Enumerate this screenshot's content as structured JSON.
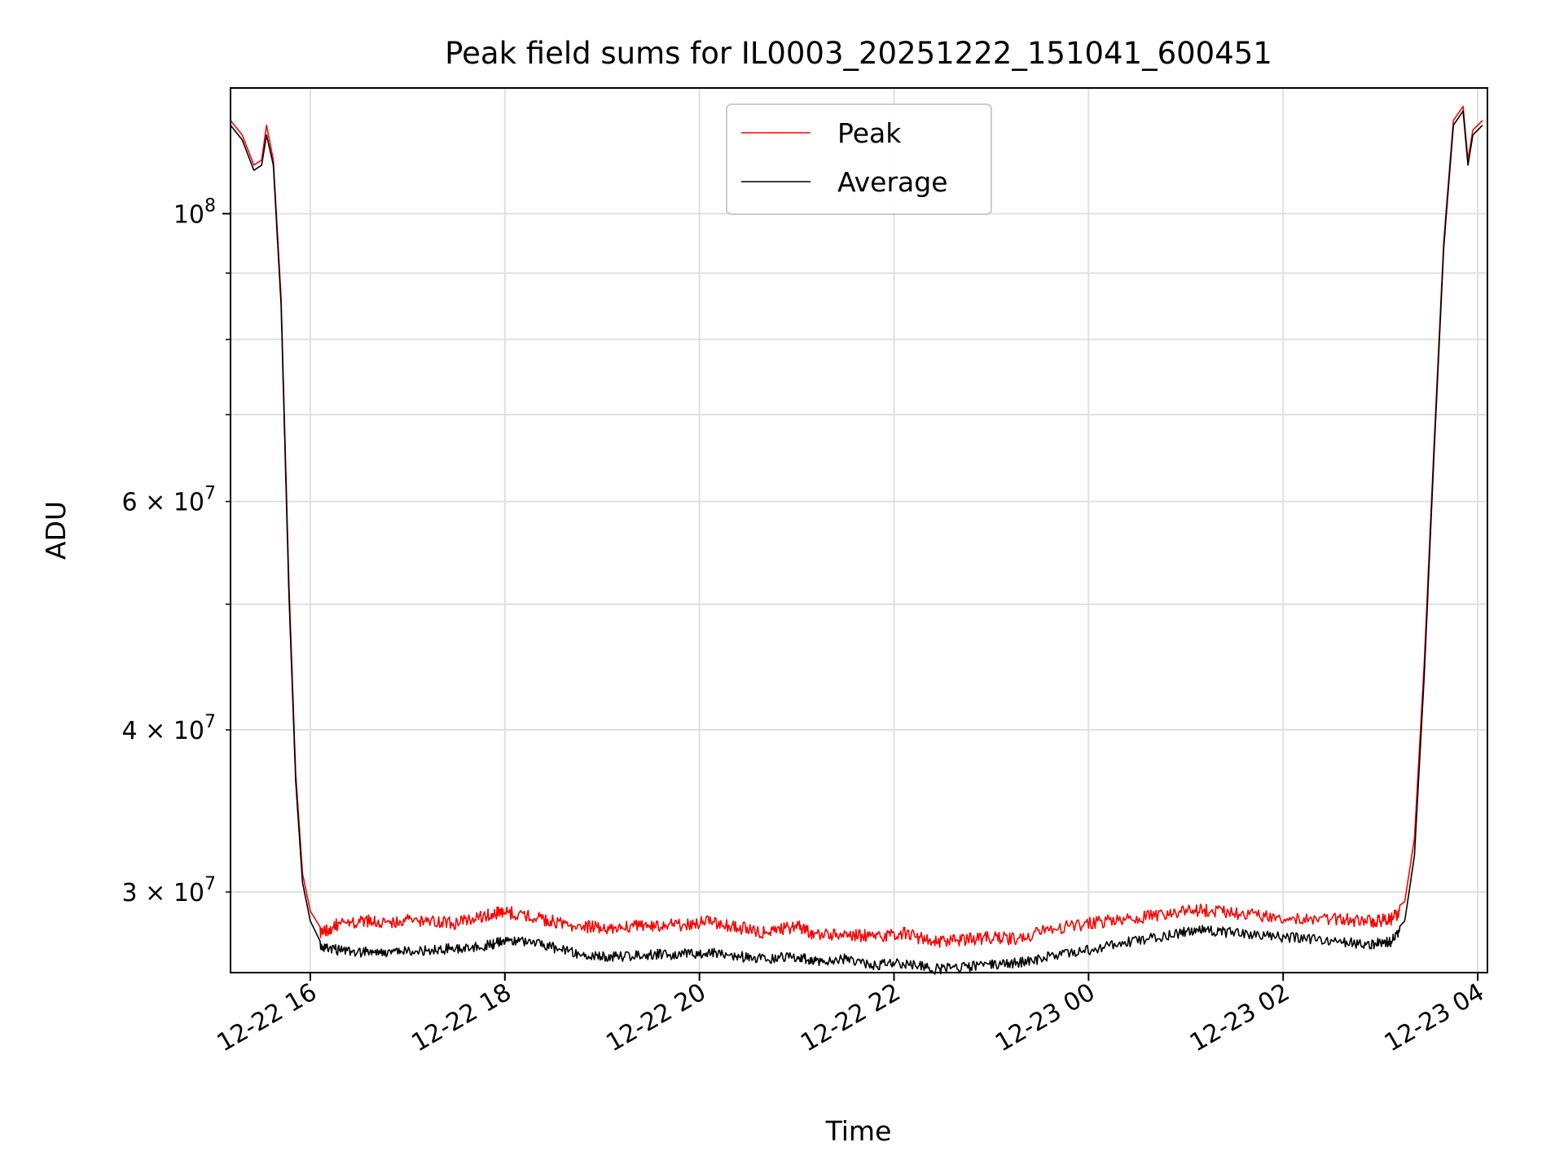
{
  "chart_data": {
    "type": "line",
    "title": "Peak field sums for IL0003_20251222_151041_600451",
    "xlabel": "Time",
    "ylabel": "ADU",
    "y_scale": "log",
    "ylim": [
      26000000,
      125000000
    ],
    "xlim_hours": [
      15.18,
      28.1
    ],
    "x_tick_hours": [
      16,
      18,
      20,
      22,
      24,
      26,
      28
    ],
    "x_tick_labels": [
      "12-22 16",
      "12-22 18",
      "12-22 20",
      "12-22 22",
      "12-23 00",
      "12-23 02",
      "12-23 04"
    ],
    "y_major_ticks": [
      {
        "value": 100000000,
        "base": "10",
        "exp": "8",
        "prefix": ""
      }
    ],
    "y_minor_ticks": [
      {
        "value": 30000000,
        "base": "10",
        "exp": "7",
        "prefix": "3 × "
      },
      {
        "value": 40000000,
        "base": "10",
        "exp": "7",
        "prefix": "4 × "
      },
      {
        "value": 60000000,
        "base": "10",
        "exp": "7",
        "prefix": "6 × "
      },
      {
        "value": 50000000,
        "base": "",
        "exp": "",
        "prefix": ""
      },
      {
        "value": 70000000,
        "base": "",
        "exp": "",
        "prefix": ""
      },
      {
        "value": 80000000,
        "base": "",
        "exp": "",
        "prefix": ""
      },
      {
        "value": 90000000,
        "base": "",
        "exp": "",
        "prefix": ""
      }
    ],
    "grid": true,
    "legend_position": "upper center",
    "series": [
      {
        "name": "Peak",
        "color": "#ff0000",
        "x_hours": [
          15.18,
          15.3,
          15.42,
          15.5,
          15.55,
          15.62,
          15.7,
          15.78,
          15.85,
          15.92,
          16.0,
          16.1,
          16.3,
          16.6,
          16.9,
          17.2,
          17.5,
          17.8,
          18.0,
          18.3,
          18.6,
          18.9,
          19.2,
          19.5,
          19.8,
          20.1,
          20.4,
          20.7,
          21.0,
          21.2,
          21.5,
          21.8,
          22.1,
          22.4,
          22.7,
          23.0,
          23.3,
          23.6,
          24.0,
          24.4,
          24.8,
          25.1,
          25.4,
          25.8,
          26.2,
          26.6,
          26.9,
          27.1,
          27.25,
          27.35,
          27.45,
          27.55,
          27.65,
          27.75,
          27.85,
          27.9,
          27.95,
          28.05
        ],
        "values": [
          118000000,
          115000000,
          109000000,
          110000000,
          117000000,
          110000000,
          86000000,
          52000000,
          37000000,
          31000000,
          29000000,
          28200000,
          28700000,
          28800000,
          28800000,
          28900000,
          28700000,
          29100000,
          29300000,
          29000000,
          28700000,
          28500000,
          28500000,
          28600000,
          28600000,
          28800000,
          28500000,
          28200000,
          28600000,
          28100000,
          28200000,
          28000000,
          28200000,
          27800000,
          27900000,
          28000000,
          27900000,
          28400000,
          28700000,
          28900000,
          29200000,
          29400000,
          29300000,
          29100000,
          29000000,
          28900000,
          28800000,
          28900000,
          29500000,
          33000000,
          45000000,
          66000000,
          95000000,
          118000000,
          121000000,
          110000000,
          116000000,
          118000000
        ]
      },
      {
        "name": "Average",
        "color": "#000000",
        "x_hours": [
          15.18,
          15.3,
          15.42,
          15.5,
          15.55,
          15.62,
          15.7,
          15.78,
          15.85,
          15.92,
          16.0,
          16.1,
          16.3,
          16.6,
          16.9,
          17.2,
          17.5,
          17.8,
          18.0,
          18.3,
          18.6,
          18.9,
          19.2,
          19.5,
          19.8,
          20.1,
          20.4,
          20.7,
          21.0,
          21.2,
          21.5,
          21.8,
          22.1,
          22.4,
          22.7,
          23.0,
          23.3,
          23.6,
          24.0,
          24.4,
          24.8,
          25.1,
          25.4,
          25.8,
          26.2,
          26.6,
          26.9,
          27.1,
          27.25,
          27.35,
          27.45,
          27.55,
          27.65,
          27.75,
          27.85,
          27.9,
          27.95,
          28.05
        ],
        "values": [
          117000000,
          114000000,
          108000000,
          109000000,
          115000000,
          109000000,
          85000000,
          51000000,
          36500000,
          30500000,
          28500000,
          27500000,
          27300000,
          27200000,
          27200000,
          27300000,
          27400000,
          27500000,
          27800000,
          27700000,
          27300000,
          27000000,
          27000000,
          27100000,
          27100000,
          27200000,
          27000000,
          26900000,
          27000000,
          26800000,
          26900000,
          26600000,
          26700000,
          26400000,
          26500000,
          26600000,
          26700000,
          27000000,
          27300000,
          27700000,
          28000000,
          28300000,
          28200000,
          28000000,
          27900000,
          27700000,
          27600000,
          27700000,
          28500000,
          32000000,
          44000000,
          65000000,
          94000000,
          117000000,
          120000000,
          109000000,
          115000000,
          117000000
        ]
      }
    ]
  }
}
